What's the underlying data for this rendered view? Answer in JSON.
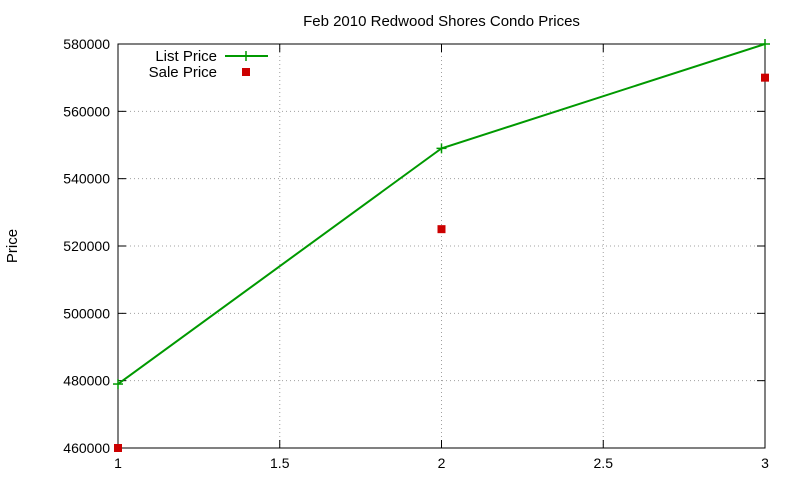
{
  "chart_data": {
    "type": "line",
    "title": "Feb 2010 Redwood Shores Condo Prices",
    "xlabel": "",
    "ylabel": "Price",
    "xlim": [
      1,
      3
    ],
    "ylim": [
      460000,
      580000
    ],
    "x_ticks": [
      "1",
      "1.5",
      "2",
      "2.5",
      "3"
    ],
    "y_ticks": [
      "460000",
      "480000",
      "500000",
      "520000",
      "540000",
      "560000",
      "580000"
    ],
    "grid": true,
    "legend_position": "top-left",
    "series": [
      {
        "name": "List Price",
        "style": "line-with-plus-markers",
        "color": "#009900",
        "x": [
          1,
          2,
          3
        ],
        "y": [
          479000,
          549000,
          580000
        ]
      },
      {
        "name": "Sale Price",
        "style": "square-markers",
        "color": "#cc0000",
        "x": [
          1,
          2,
          3
        ],
        "y": [
          460000,
          525000,
          570000
        ]
      }
    ]
  }
}
